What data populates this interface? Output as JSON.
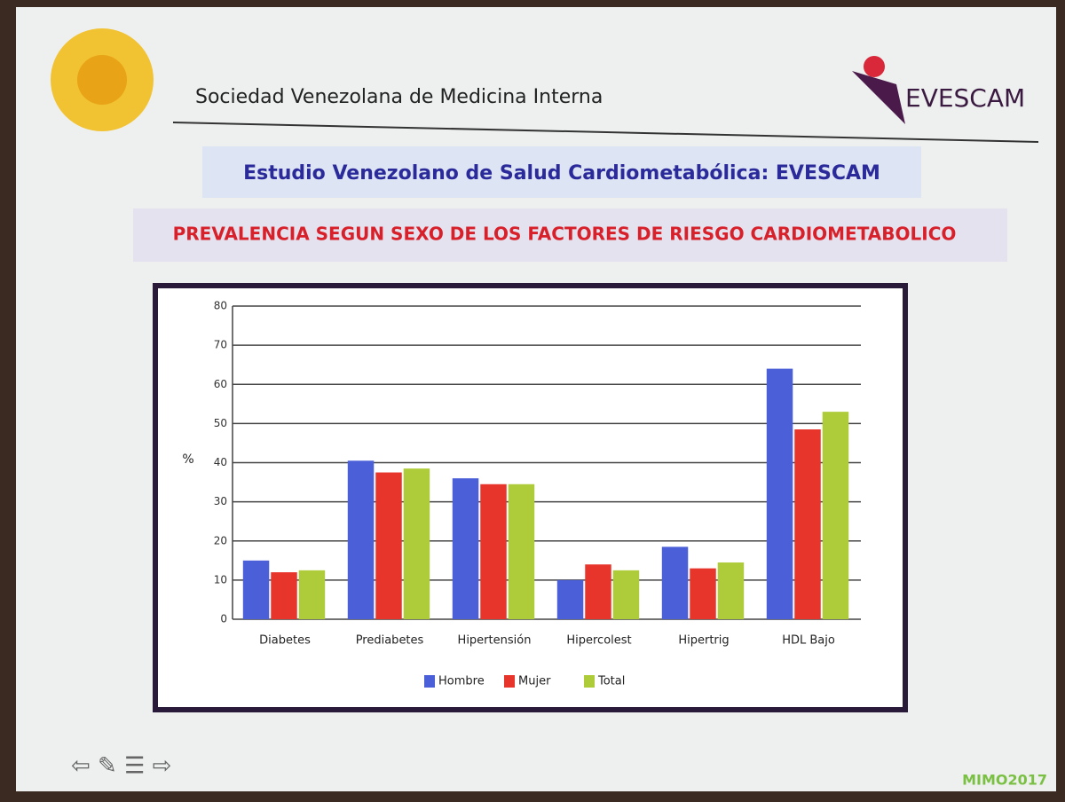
{
  "slide": {
    "society": "Sociedad Venezolana de Medicina Interna",
    "logo_text": "EVESCAM",
    "study_title": "Estudio Venezolano de  Salud Cardiometabólica: EVESCAM",
    "footer": "MIMO2017"
  },
  "chart_data": {
    "type": "bar",
    "title": "PREVALENCIA SEGUN SEXO DE LOS FACTORES DE RIESGO CARDIOMETABOLICO",
    "y_label": "%",
    "categories": [
      "Diabetes",
      "Prediabetes",
      "Hipertensión",
      "Hipercolest",
      "Hipertrig",
      "HDL Bajo"
    ],
    "series": [
      {
        "name": "Hombre",
        "color": "#4a5fd8",
        "values": [
          15,
          40.5,
          36,
          10,
          18.5,
          64
        ]
      },
      {
        "name": "Mujer",
        "color": "#e8352b",
        "values": [
          12,
          37.5,
          34.5,
          14,
          13,
          48.5
        ]
      },
      {
        "name": "Total",
        "color": "#aecb3a",
        "values": [
          12.5,
          38.5,
          34.5,
          12.5,
          14.5,
          53
        ]
      }
    ],
    "ylim": [
      0,
      80
    ],
    "yticks": [
      0,
      10,
      20,
      30,
      40,
      50,
      60,
      70,
      80
    ],
    "grid": true,
    "legend": "bottom"
  }
}
